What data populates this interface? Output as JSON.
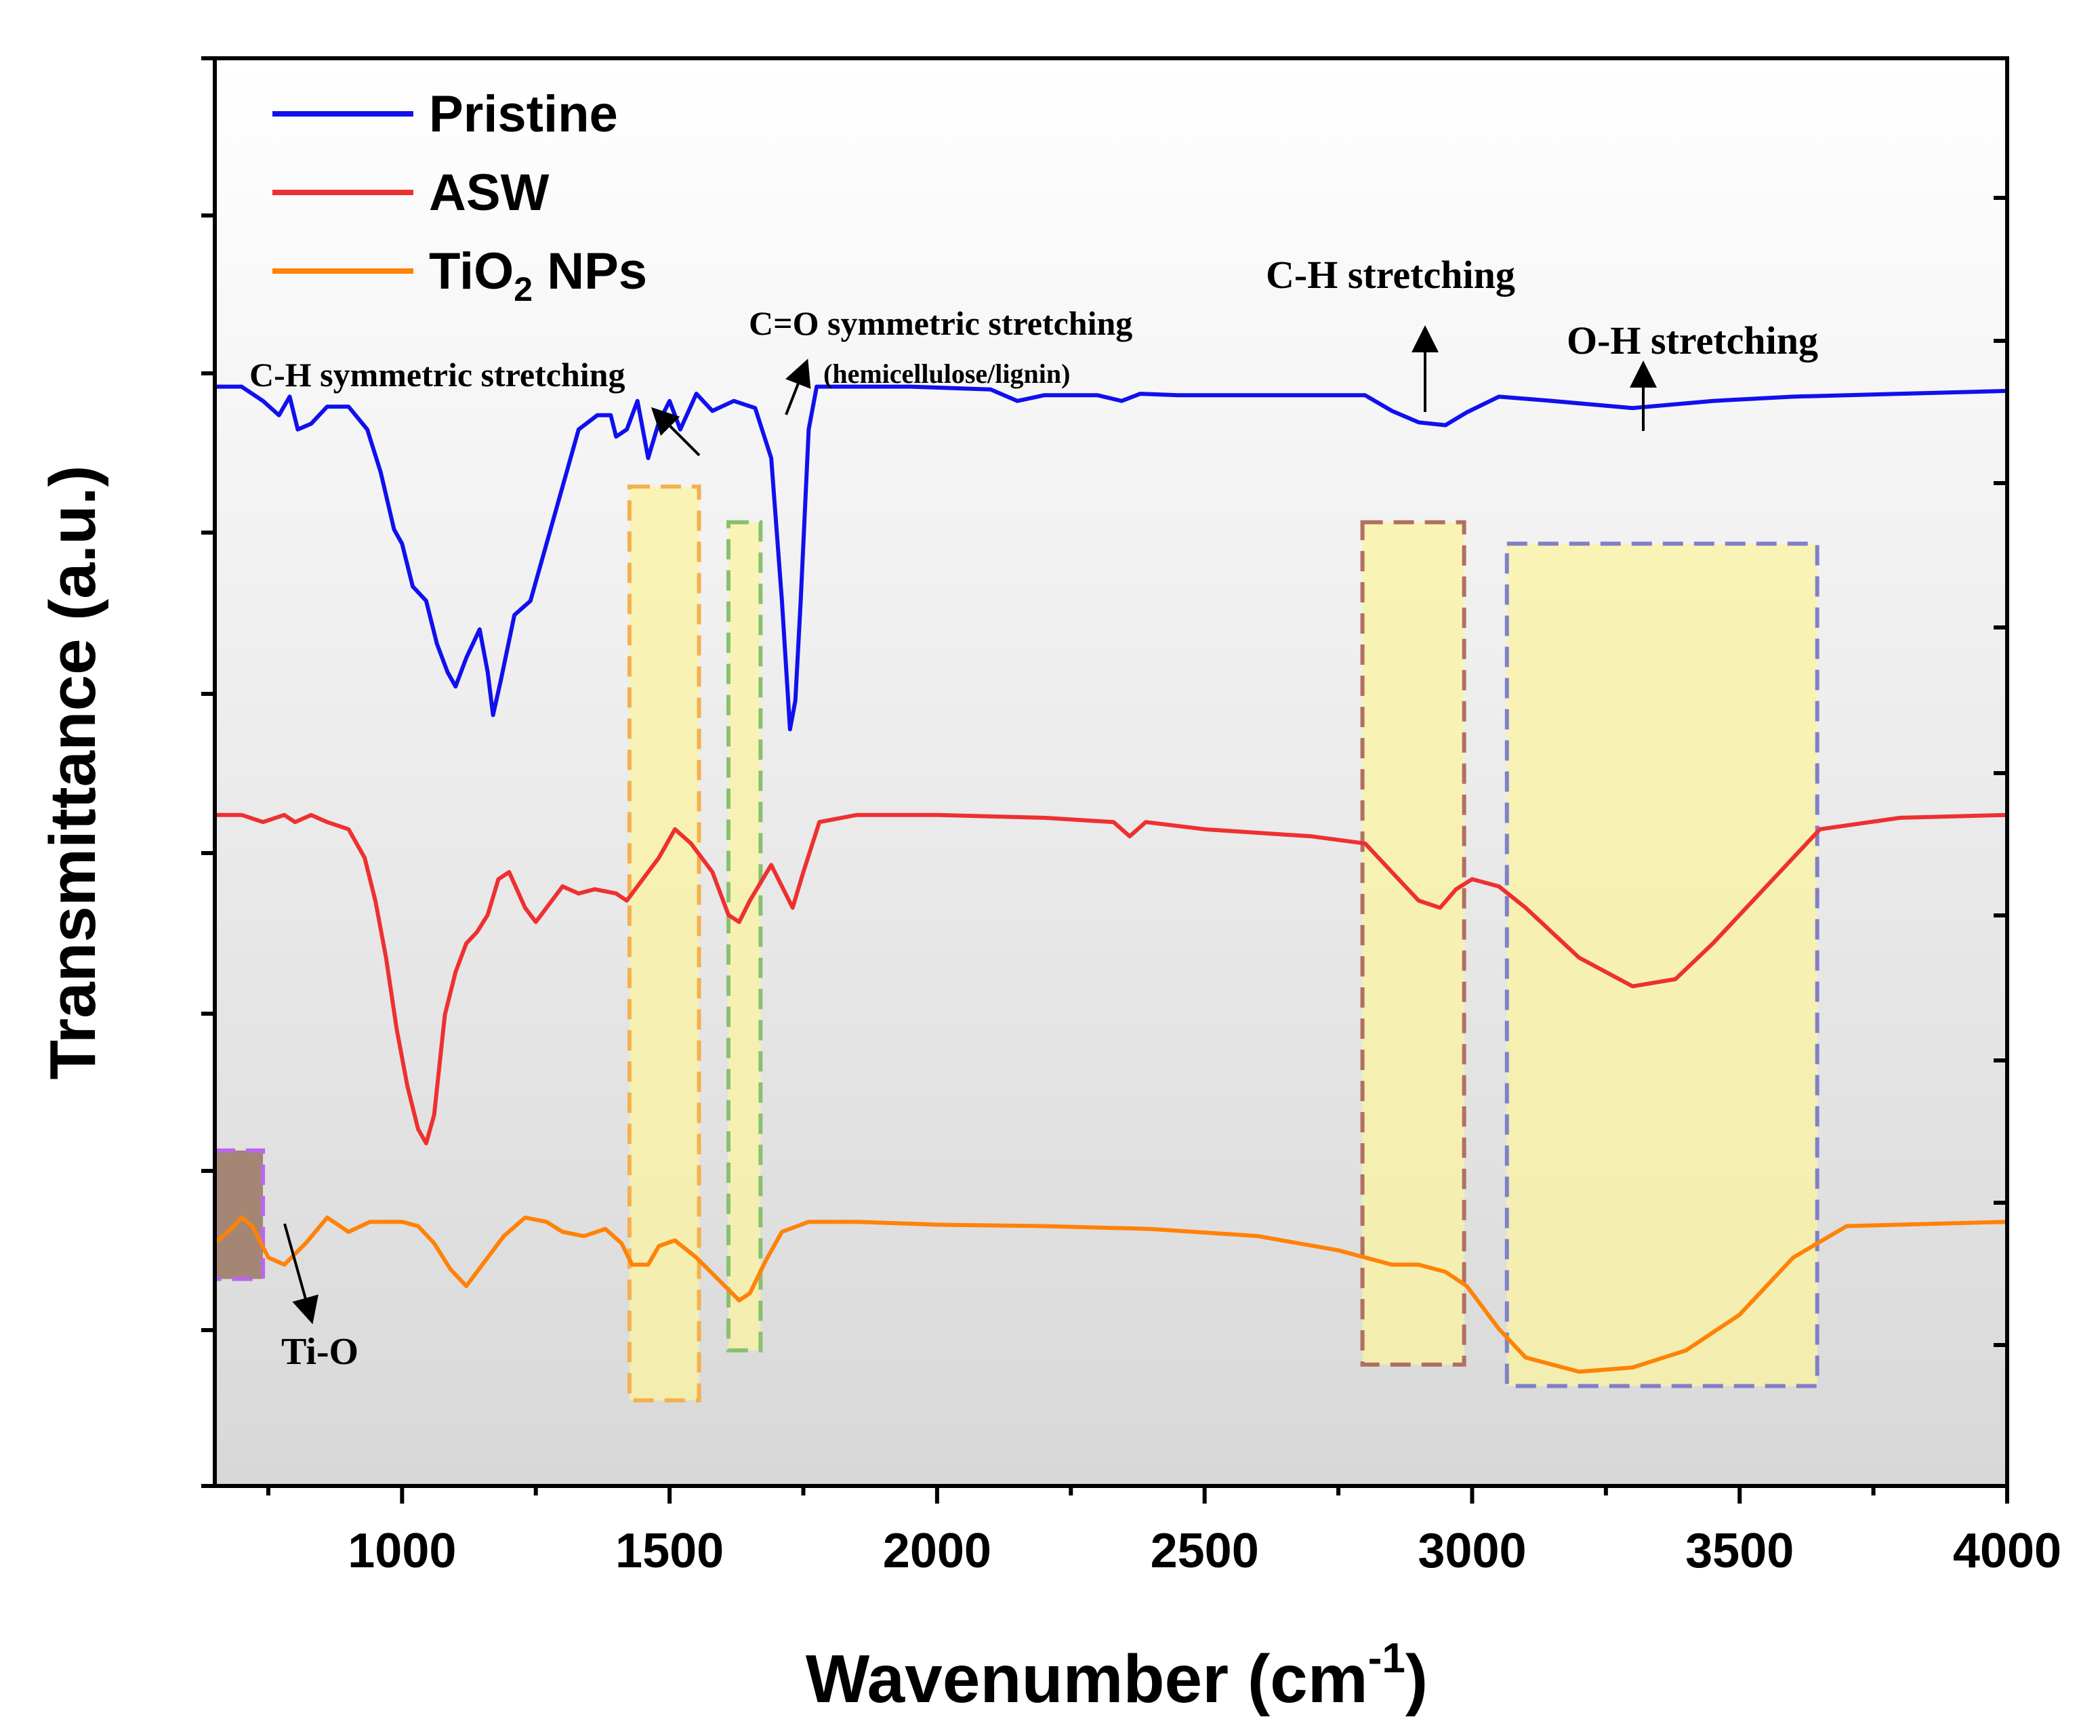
{
  "chart_data": {
    "type": "line",
    "title": "",
    "xlabel": "Wavenumber (cm",
    "xlabel_sup": "-1",
    "xlabel_close": ")",
    "ylabel": "Transmittance (a.u.)",
    "xlim": [
      650,
      4000
    ],
    "ylim": [
      0,
      100
    ],
    "xticks": [
      1000,
      1500,
      2000,
      2500,
      3000,
      3500,
      4000
    ],
    "x_tick_labels": [
      "1000",
      "1500",
      "2000",
      "2500",
      "3000",
      "3500",
      "4000"
    ],
    "y_tick_labels_shown": false,
    "legend_position": "top-left",
    "series": [
      {
        "name": "Pristine",
        "color": "#1010ee",
        "points": [
          [
            650,
            77
          ],
          [
            700,
            77
          ],
          [
            740,
            76
          ],
          [
            770,
            75
          ],
          [
            790,
            76.3
          ],
          [
            805,
            74
          ],
          [
            830,
            74.4
          ],
          [
            860,
            75.6
          ],
          [
            900,
            75.6
          ],
          [
            935,
            74
          ],
          [
            960,
            71
          ],
          [
            985,
            67
          ],
          [
            1000,
            66
          ],
          [
            1020,
            63
          ],
          [
            1045,
            62
          ],
          [
            1065,
            59
          ],
          [
            1085,
            57
          ],
          [
            1100,
            56
          ],
          [
            1120,
            58
          ],
          [
            1145,
            60
          ],
          [
            1160,
            57
          ],
          [
            1170,
            54
          ],
          [
            1185,
            56.5
          ],
          [
            1210,
            61
          ],
          [
            1240,
            62
          ],
          [
            1270,
            66
          ],
          [
            1300,
            70
          ],
          [
            1330,
            74
          ],
          [
            1365,
            75
          ],
          [
            1390,
            75
          ],
          [
            1400,
            73.5
          ],
          [
            1420,
            74
          ],
          [
            1440,
            76
          ],
          [
            1460,
            72
          ],
          [
            1480,
            74.5
          ],
          [
            1500,
            76
          ],
          [
            1520,
            74
          ],
          [
            1550,
            76.5
          ],
          [
            1580,
            75.3
          ],
          [
            1620,
            76
          ],
          [
            1660,
            75.5
          ],
          [
            1690,
            72
          ],
          [
            1710,
            62
          ],
          [
            1725,
            53
          ],
          [
            1735,
            55
          ],
          [
            1745,
            62
          ],
          [
            1760,
            74
          ],
          [
            1775,
            77
          ],
          [
            1850,
            77
          ],
          [
            1950,
            77
          ],
          [
            2100,
            76.8
          ],
          [
            2150,
            76
          ],
          [
            2200,
            76.4
          ],
          [
            2300,
            76.4
          ],
          [
            2345,
            76
          ],
          [
            2380,
            76.5
          ],
          [
            2450,
            76.4
          ],
          [
            2600,
            76.4
          ],
          [
            2800,
            76.4
          ],
          [
            2850,
            75.3
          ],
          [
            2900,
            74.5
          ],
          [
            2950,
            74.3
          ],
          [
            2990,
            75.2
          ],
          [
            3050,
            76.3
          ],
          [
            3150,
            76
          ],
          [
            3300,
            75.5
          ],
          [
            3450,
            76
          ],
          [
            3600,
            76.3
          ],
          [
            3800,
            76.5
          ],
          [
            4000,
            76.7
          ]
        ]
      },
      {
        "name": "ASW",
        "color": "#ee3030",
        "points": [
          [
            650,
            47
          ],
          [
            700,
            47
          ],
          [
            740,
            46.5
          ],
          [
            780,
            47
          ],
          [
            800,
            46.5
          ],
          [
            830,
            47
          ],
          [
            860,
            46.5
          ],
          [
            900,
            46
          ],
          [
            930,
            44
          ],
          [
            950,
            41
          ],
          [
            970,
            37
          ],
          [
            990,
            32
          ],
          [
            1010,
            28
          ],
          [
            1030,
            25
          ],
          [
            1045,
            24
          ],
          [
            1060,
            26
          ],
          [
            1080,
            33
          ],
          [
            1100,
            36
          ],
          [
            1120,
            38
          ],
          [
            1140,
            38.8
          ],
          [
            1160,
            40
          ],
          [
            1180,
            42.5
          ],
          [
            1200,
            43
          ],
          [
            1230,
            40.5
          ],
          [
            1250,
            39.5
          ],
          [
            1270,
            40.5
          ],
          [
            1300,
            42
          ],
          [
            1330,
            41.5
          ],
          [
            1360,
            41.8
          ],
          [
            1400,
            41.5
          ],
          [
            1420,
            41
          ],
          [
            1450,
            42.5
          ],
          [
            1480,
            44
          ],
          [
            1510,
            46
          ],
          [
            1540,
            45
          ],
          [
            1580,
            43
          ],
          [
            1610,
            40
          ],
          [
            1630,
            39.5
          ],
          [
            1650,
            41
          ],
          [
            1690,
            43.5
          ],
          [
            1710,
            42
          ],
          [
            1730,
            40.5
          ],
          [
            1750,
            43
          ],
          [
            1780,
            46.5
          ],
          [
            1850,
            47
          ],
          [
            2000,
            47
          ],
          [
            2200,
            46.8
          ],
          [
            2330,
            46.5
          ],
          [
            2360,
            45.5
          ],
          [
            2390,
            46.5
          ],
          [
            2500,
            46
          ],
          [
            2700,
            45.5
          ],
          [
            2800,
            45
          ],
          [
            2850,
            43
          ],
          [
            2900,
            41
          ],
          [
            2940,
            40.5
          ],
          [
            2970,
            41.8
          ],
          [
            3000,
            42.5
          ],
          [
            3050,
            42
          ],
          [
            3100,
            40.5
          ],
          [
            3200,
            37
          ],
          [
            3300,
            35
          ],
          [
            3380,
            35.5
          ],
          [
            3450,
            38
          ],
          [
            3550,
            42
          ],
          [
            3650,
            46
          ],
          [
            3800,
            46.8
          ],
          [
            4000,
            47
          ]
        ]
      },
      {
        "name": "TiO2 NPs",
        "color": "#ff8208",
        "points": [
          [
            650,
            17
          ],
          [
            680,
            18
          ],
          [
            700,
            18.8
          ],
          [
            720,
            18.2
          ],
          [
            750,
            16
          ],
          [
            780,
            15.5
          ],
          [
            820,
            17
          ],
          [
            860,
            18.8
          ],
          [
            900,
            17.8
          ],
          [
            940,
            18.5
          ],
          [
            1000,
            18.5
          ],
          [
            1030,
            18.2
          ],
          [
            1060,
            17
          ],
          [
            1090,
            15.2
          ],
          [
            1120,
            14
          ],
          [
            1150,
            15.5
          ],
          [
            1190,
            17.5
          ],
          [
            1230,
            18.8
          ],
          [
            1270,
            18.5
          ],
          [
            1300,
            17.8
          ],
          [
            1340,
            17.5
          ],
          [
            1380,
            18
          ],
          [
            1410,
            17
          ],
          [
            1430,
            15.5
          ],
          [
            1460,
            15.5
          ],
          [
            1480,
            16.8
          ],
          [
            1510,
            17.2
          ],
          [
            1550,
            16
          ],
          [
            1590,
            14.5
          ],
          [
            1630,
            13
          ],
          [
            1650,
            13.5
          ],
          [
            1680,
            15.8
          ],
          [
            1710,
            17.8
          ],
          [
            1760,
            18.5
          ],
          [
            1850,
            18.5
          ],
          [
            2000,
            18.3
          ],
          [
            2200,
            18.2
          ],
          [
            2400,
            18
          ],
          [
            2600,
            17.5
          ],
          [
            2750,
            16.5
          ],
          [
            2850,
            15.5
          ],
          [
            2900,
            15.5
          ],
          [
            2950,
            15
          ],
          [
            2990,
            14
          ],
          [
            3050,
            11
          ],
          [
            3100,
            9
          ],
          [
            3200,
            8
          ],
          [
            3300,
            8.3
          ],
          [
            3400,
            9.5
          ],
          [
            3500,
            12
          ],
          [
            3600,
            16
          ],
          [
            3700,
            18.2
          ],
          [
            3800,
            18.3
          ],
          [
            4000,
            18.5
          ]
        ]
      }
    ],
    "annotations": [
      {
        "text": "C-H symmetric stretching"
      },
      {
        "text": "C=O symmetric stretching"
      },
      {
        "text": "(hemicellulose/lignin)"
      },
      {
        "text": "C-H stretching"
      },
      {
        "text": "O-H stretching"
      },
      {
        "text": "Ti-O"
      }
    ],
    "highlight_regions": [
      {
        "name": "ti-o-region",
        "x": [
          650,
          740
        ],
        "y": [
          14.5,
          23.5
        ],
        "fill": "#9c7d68",
        "border": "#bb66ee"
      },
      {
        "name": "ch-symmetric-region",
        "x": [
          1425,
          1555
        ],
        "y": [
          6,
          70
        ],
        "fill": "#fbf4a0",
        "border": "#f4b050"
      },
      {
        "name": "co-symmetric-region",
        "x": [
          1610,
          1670
        ],
        "y": [
          9.5,
          67.5
        ],
        "fill": "#fbf4a0",
        "border": "#88c070"
      },
      {
        "name": "ch-stretching-region",
        "x": [
          2795,
          2985
        ],
        "y": [
          8.5,
          67.5
        ],
        "fill": "#fbf4a0",
        "border": "#b07060"
      },
      {
        "name": "oh-stretching-region",
        "x": [
          3065,
          3645
        ],
        "y": [
          7,
          66
        ],
        "fill": "#fbf4a0",
        "border": "#8080c8"
      }
    ]
  }
}
